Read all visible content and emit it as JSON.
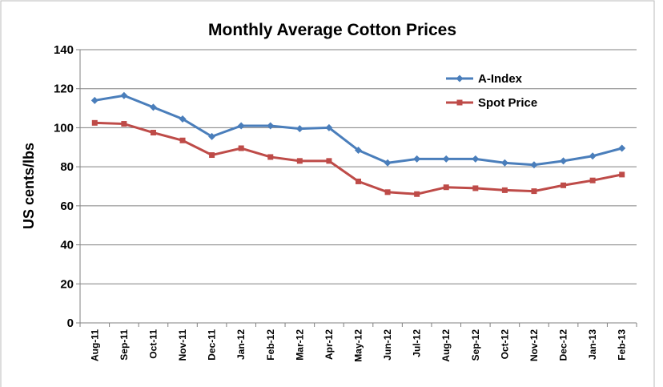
{
  "chart_data": {
    "type": "line",
    "title": "Monthly Average Cotton Prices",
    "y_label": "US cents/lbs",
    "categories": [
      "Aug-11",
      "Sep-11",
      "Oct-11",
      "Nov-11",
      "Dec-11",
      "Jan-12",
      "Feb-12",
      "Mar-12",
      "Apr-12",
      "May-12",
      "Jun-12",
      "Jul-12",
      "Aug-12",
      "Sep-12",
      "Oct-12",
      "Nov-12",
      "Dec-12",
      "Jan-13",
      "Feb-13"
    ],
    "series": [
      {
        "name": "A-Index",
        "color": "#4a7ebb",
        "marker": "diamond",
        "values": [
          114,
          116.5,
          110.5,
          104.5,
          95.5,
          101,
          101,
          99.5,
          100,
          88.5,
          82,
          84,
          84,
          84,
          82,
          81,
          83,
          85.5,
          89.5
        ]
      },
      {
        "name": "Spot Price",
        "color": "#be4b48",
        "marker": "square",
        "values": [
          102.5,
          102,
          97.5,
          93.5,
          86,
          89.5,
          85,
          83,
          83,
          72.5,
          67,
          66,
          69.5,
          69,
          68,
          67.5,
          70.5,
          73,
          76
        ]
      }
    ],
    "ylim": [
      0,
      140
    ],
    "yticks": [
      0,
      20,
      40,
      60,
      80,
      100,
      120,
      140
    ],
    "grid": true,
    "legend": "top-right"
  }
}
